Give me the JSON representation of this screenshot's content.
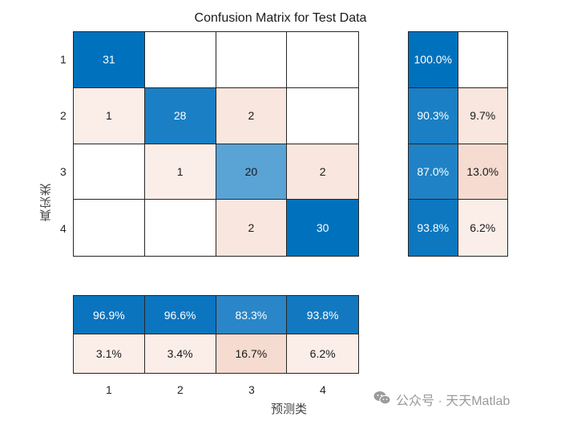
{
  "chart_data": {
    "type": "heatmap",
    "title": "Confusion Matrix for Test Data",
    "xlabel": "预测类",
    "ylabel": "真实类",
    "classes": [
      "1",
      "2",
      "3",
      "4"
    ],
    "matrix": [
      [
        31,
        null,
        null,
        null
      ],
      [
        1,
        28,
        2,
        null
      ],
      [
        null,
        1,
        20,
        2
      ],
      [
        null,
        null,
        2,
        30
      ]
    ],
    "row_summary": [
      [
        "100.0%",
        ""
      ],
      [
        "90.3%",
        "9.7%"
      ],
      [
        "87.0%",
        "13.0%"
      ],
      [
        "93.8%",
        "6.2%"
      ]
    ],
    "column_summary": {
      "correct": [
        "96.9%",
        "96.6%",
        "83.3%",
        "93.8%"
      ],
      "incorrect": [
        "3.1%",
        "3.4%",
        "16.7%",
        "6.2%"
      ]
    },
    "colors": {
      "diag_dark": "#0072bd",
      "diag_mid": "#1a7fc4",
      "diag_light": "#5aa3d5",
      "off_light": "#fbeee9",
      "off_mid": "#f9e6de",
      "off_strong": "#f5dbd0",
      "empty": "#ffffff",
      "border": "#262626"
    }
  },
  "watermark": {
    "text": "公众号 · 天天Matlab",
    "icon": "wechat-icon"
  }
}
